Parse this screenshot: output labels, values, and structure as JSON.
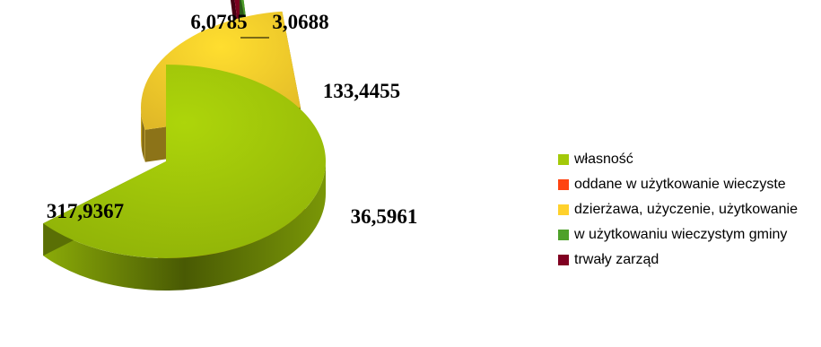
{
  "chart_data": {
    "type": "pie",
    "title": "",
    "categories": [
      "własność",
      "oddane w użytkowanie wieczyste",
      "dzierżawa, użyczenie, użytkowanie",
      "w użytkowaniu wieczystym gminy",
      "trwały zarząd"
    ],
    "values": [
      317.9367,
      36.5961,
      133.4455,
      3.0688,
      6.0785
    ],
    "value_labels": [
      "317,9367",
      "36,5961",
      "133,4455",
      "3,0688",
      "6,0785"
    ],
    "colors": [
      "#a3c909",
      "#ff4411",
      "#ffd12c",
      "#4ea12a",
      "#800021"
    ],
    "legend_position": "right",
    "exploded": true,
    "style": "3d"
  }
}
